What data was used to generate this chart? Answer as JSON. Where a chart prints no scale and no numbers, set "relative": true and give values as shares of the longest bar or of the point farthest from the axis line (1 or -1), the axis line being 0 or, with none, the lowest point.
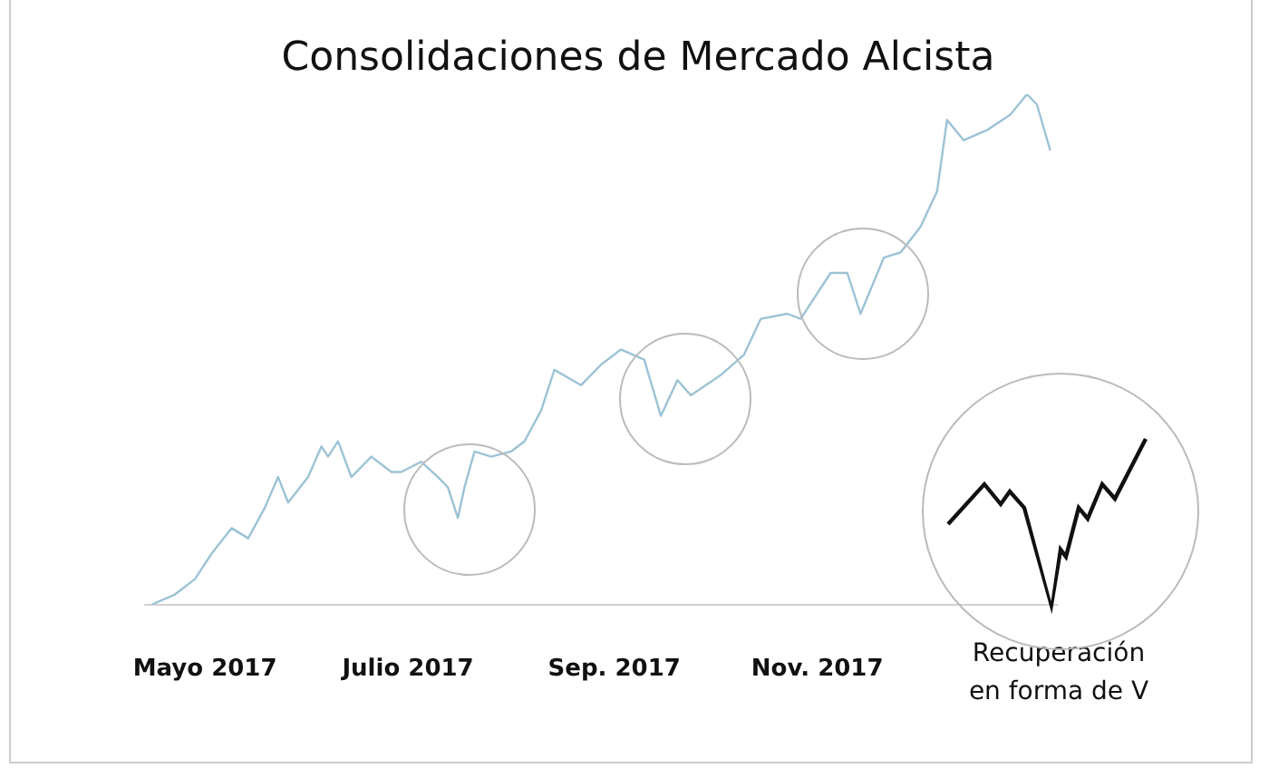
{
  "chart_data": {
    "type": "line",
    "title": "Consolidaciones de Mercado Alcista",
    "relative": true,
    "xlim": [
      "2017-04-13",
      "2018-01-12"
    ],
    "xticks": [
      {
        "value": "2017-05-01",
        "label": "Mayo 2017"
      },
      {
        "value": "2017-07-01",
        "label": "Julio 2017"
      },
      {
        "value": "2017-09-01",
        "label": "Sep. 2017"
      },
      {
        "value": "2017-11-01",
        "label": "Nov. 2017"
      }
    ],
    "series": [
      {
        "color": "#9cc3d5",
        "x": [
          "2017-04-15",
          "2017-04-22",
          "2017-04-28",
          "2017-05-03",
          "2017-05-09",
          "2017-05-14",
          "2017-05-19",
          "2017-05-23",
          "2017-05-26",
          "2017-06-01",
          "2017-06-05",
          "2017-06-07",
          "2017-06-10",
          "2017-06-14",
          "2017-06-20",
          "2017-06-26",
          "2017-06-29",
          "2017-07-05",
          "2017-07-10",
          "2017-07-13",
          "2017-07-16",
          "2017-07-18",
          "2017-07-21",
          "2017-07-26",
          "2017-08-01",
          "2017-08-05",
          "2017-08-10",
          "2017-08-14",
          "2017-08-22",
          "2017-08-28",
          "2017-09-03",
          "2017-09-10",
          "2017-09-15",
          "2017-09-20",
          "2017-09-24",
          "2017-10-03",
          "2017-10-10",
          "2017-10-15",
          "2017-10-23",
          "2017-10-27",
          "2017-11-05",
          "2017-11-10",
          "2017-11-14",
          "2017-11-21",
          "2017-11-26",
          "2017-12-02",
          "2017-12-07",
          "2017-12-10",
          "2017-12-15",
          "2017-12-22",
          "2017-12-29",
          "2018-01-03",
          "2018-01-06",
          "2018-01-10"
        ],
        "values": [
          0,
          0.02,
          0.05,
          0.1,
          0.15,
          0.13,
          0.19,
          0.25,
          0.2,
          0.25,
          0.31,
          0.29,
          0.32,
          0.25,
          0.29,
          0.26,
          0.26,
          0.28,
          0.25,
          0.23,
          0.17,
          0.23,
          0.3,
          0.29,
          0.3,
          0.32,
          0.38,
          0.46,
          0.43,
          0.47,
          0.5,
          0.48,
          0.37,
          0.44,
          0.41,
          0.45,
          0.49,
          0.56,
          0.57,
          0.56,
          0.65,
          0.65,
          0.57,
          0.68,
          0.69,
          0.74,
          0.81,
          0.95,
          0.91,
          0.93,
          0.96,
          1,
          0.98,
          0.89
        ]
      }
    ],
    "annotations": [
      "Recuperación en forma de V"
    ]
  }
}
